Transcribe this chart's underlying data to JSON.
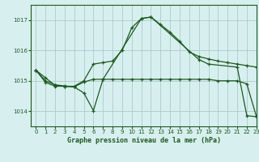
{
  "bg_color": "#d8eff0",
  "grid_color": "#aacccc",
  "line_color": "#1a5c1a",
  "ylim": [
    1013.5,
    1017.5
  ],
  "xlim": [
    -0.5,
    23
  ],
  "yticks": [
    1014,
    1015,
    1016,
    1017
  ],
  "xticks": [
    0,
    1,
    2,
    3,
    4,
    5,
    6,
    7,
    8,
    9,
    10,
    11,
    12,
    13,
    14,
    15,
    16,
    17,
    18,
    19,
    20,
    21,
    22,
    23
  ],
  "xlabel": "Graphe pression niveau de la mer (hPa)",
  "line1_x": [
    0,
    1,
    2,
    3,
    4,
    5,
    6,
    7,
    8,
    9,
    10,
    11,
    12,
    13,
    14,
    15,
    16,
    17,
    18,
    19,
    20,
    21,
    22,
    23
  ],
  "line1_y": [
    1015.35,
    1015.1,
    1014.85,
    1014.82,
    1014.82,
    1015.0,
    1015.55,
    1015.6,
    1015.65,
    1016.0,
    1016.75,
    1017.05,
    1017.1,
    1016.85,
    1016.6,
    1016.3,
    1015.95,
    1015.8,
    1015.72,
    1015.65,
    1015.6,
    1015.55,
    1015.5,
    1015.45
  ],
  "line2_x": [
    0,
    1,
    2,
    3,
    4,
    5,
    6,
    7,
    11,
    12,
    17,
    18,
    21,
    22,
    23
  ],
  "line2_y": [
    1015.35,
    1014.95,
    1014.82,
    1014.82,
    1014.8,
    1014.6,
    1014.02,
    1015.05,
    1017.05,
    1017.1,
    1015.7,
    1015.55,
    1015.45,
    1013.85,
    1013.82
  ],
  "line3_x": [
    0,
    1,
    2,
    3,
    4,
    5,
    6,
    7,
    8,
    9,
    10,
    11,
    12,
    13,
    14,
    15,
    16,
    17,
    18,
    19,
    20,
    21,
    22,
    23
  ],
  "line3_y": [
    1015.35,
    1015.0,
    1014.87,
    1014.83,
    1014.8,
    1014.96,
    1015.05,
    1015.05,
    1015.05,
    1015.05,
    1015.05,
    1015.05,
    1015.05,
    1015.05,
    1015.05,
    1015.05,
    1015.05,
    1015.05,
    1015.05,
    1015.0,
    1015.0,
    1015.0,
    1014.9,
    1013.82
  ]
}
